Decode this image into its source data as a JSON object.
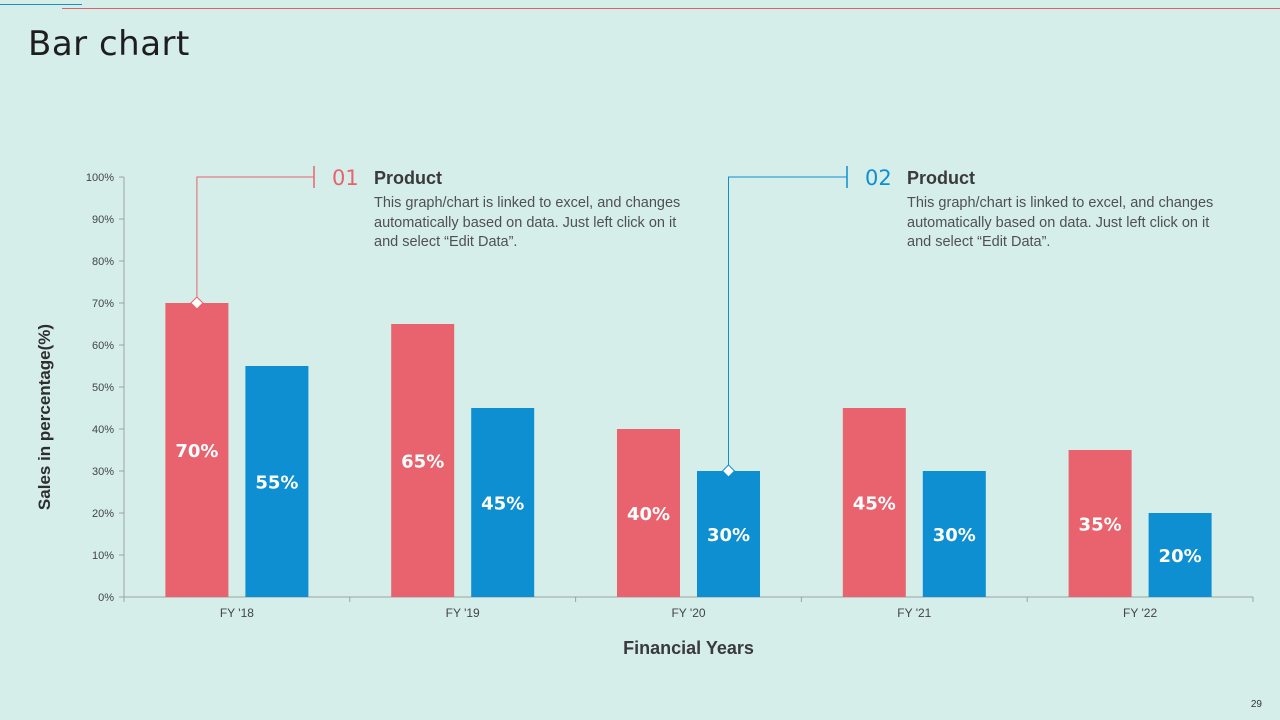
{
  "slide": {
    "title": "Bar chart",
    "page_number": "29"
  },
  "colors": {
    "series1": "#e8636d",
    "series2": "#0e8fd1",
    "background": "#d5eeea",
    "axis": "#9aa4a3"
  },
  "callouts": [
    {
      "number": "01",
      "heading": "Product",
      "text": "This graph/chart is linked to excel, and changes automatically based on data. Just left click on it and select “Edit Data”.",
      "color": "#e8636d"
    },
    {
      "number": "02",
      "heading": "Product",
      "text": "This graph/chart is linked to excel, and changes automatically based on data. Just left click on it and select “Edit Data”.",
      "color": "#0e8fd1"
    }
  ],
  "chart_data": {
    "type": "bar",
    "title": "",
    "xlabel": "Financial Years",
    "ylabel": "Sales in percentage(%)",
    "categories": [
      "FY '18",
      "FY '19",
      "FY '20",
      "FY '21",
      "FY '22"
    ],
    "series": [
      {
        "name": "Product 01",
        "values": [
          70,
          65,
          40,
          45,
          35
        ],
        "labels": [
          "70%",
          "65%",
          "40%",
          "45%",
          "35%"
        ]
      },
      {
        "name": "Product 02",
        "values": [
          55,
          45,
          30,
          30,
          20
        ],
        "labels": [
          "55%",
          "45%",
          "30%",
          "30%",
          "20%"
        ]
      }
    ],
    "ylim": [
      0,
      100
    ],
    "yticks": [
      0,
      10,
      20,
      30,
      40,
      50,
      60,
      70,
      80,
      90,
      100
    ],
    "ytick_labels": [
      "0%",
      "10%",
      "20%",
      "30%",
      "40%",
      "50%",
      "60%",
      "70%",
      "80%",
      "90%",
      "100%"
    ],
    "grid": false,
    "annotations": [
      {
        "series": 0,
        "category": 0,
        "callout": 0
      },
      {
        "series": 1,
        "category": 2,
        "callout": 1
      }
    ]
  }
}
